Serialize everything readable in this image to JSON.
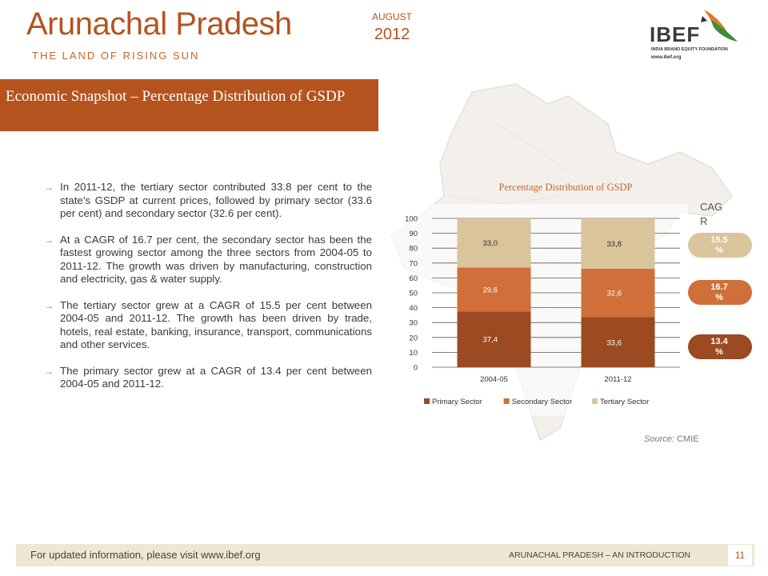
{
  "header": {
    "title": "Arunachal Pradesh",
    "subtitle": "THE LAND OF RISING SUN",
    "month": "AUGUST",
    "year": "2012"
  },
  "logo": {
    "name": "IBEF",
    "tagline": "INDIA BRAND EQUITY FOUNDATION",
    "url": "www.ibef.org"
  },
  "section": {
    "title": "Economic Snapshot – Percentage Distribution of GSDP"
  },
  "bullets": [
    "In 2011-12, the tertiary sector contributed 33.8 per cent to the state’s GSDP at current prices, followed by primary sector (33.6 per cent) and secondary sector (32.6 per cent).",
    "At a CAGR of 16.7 per cent, the secondary sector has been the fastest growing sector among the three sectors from 2004-05 to 2011-12. The growth was driven by manufacturing, construction and electricity, gas & water supply.",
    "The tertiary sector grew at a CAGR of 15.5 per cent between 2004-05 and 2011-12. The growth has been driven by trade, hotels, real estate, banking, insurance, transport, communications and other services.",
    "The primary sector grew at a CAGR of 13.4 per cent between 2004-05 and 2011-12."
  ],
  "chart_data": {
    "type": "bar",
    "stacked": true,
    "title": "Percentage Distribution of GSDP",
    "categories": [
      "2004-05",
      "2011-12"
    ],
    "series": [
      {
        "name": "Primary Sector",
        "values": [
          37.4,
          33.6
        ],
        "labels": [
          "37,4",
          "33,6"
        ],
        "color": "#9b4a22"
      },
      {
        "name": "Secondary Sector",
        "values": [
          29.6,
          32.6
        ],
        "labels": [
          "29,6",
          "32,6"
        ],
        "color": "#d06f3a"
      },
      {
        "name": "Tertiary Sector",
        "values": [
          33.0,
          33.8
        ],
        "labels": [
          "33,0",
          "33,8"
        ],
        "color": "#d9c49b"
      }
    ],
    "ylim": [
      0,
      100
    ],
    "yticks": [
      0,
      10,
      20,
      30,
      40,
      50,
      60,
      70,
      80,
      90,
      100
    ],
    "grid": true,
    "legend": "bottom"
  },
  "cagr": {
    "label": "CAGR",
    "values": [
      {
        "text": "15.5 %",
        "color": "#d9c49b"
      },
      {
        "text": "16.7 %",
        "color": "#d06f3a"
      },
      {
        "text": "13.4 %",
        "color": "#9b4a22"
      }
    ]
  },
  "source": {
    "prefix": "Source:",
    "text": "CMIE"
  },
  "footer": {
    "left": "For updated information, please visit www.ibef.org",
    "right": "ARUNACHAL PRADESH – AN INTRODUCTION",
    "page": "11"
  },
  "colors": {
    "accent": "#b5531f",
    "footer_bg": "#efe6d3"
  }
}
